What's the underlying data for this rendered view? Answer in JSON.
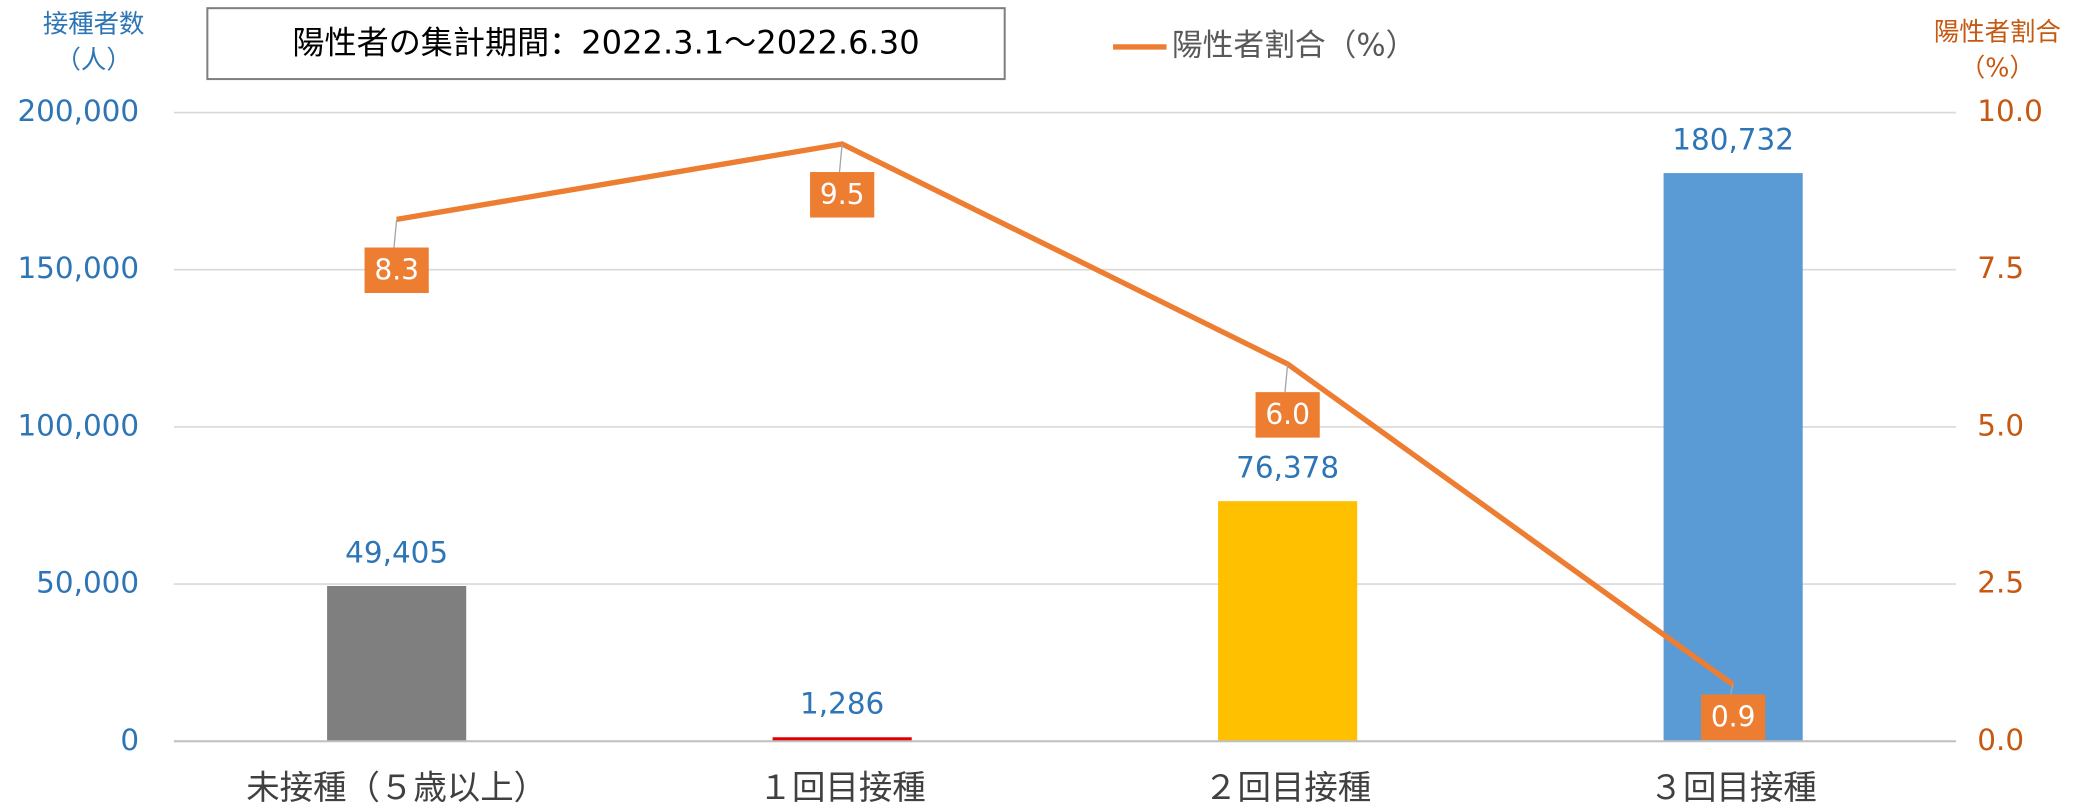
{
  "chart_data": {
    "type": "bar",
    "annotation": "陽性者の集計期間：2022.3.1～2022.6.30",
    "ylabel": [
      "接種者数",
      "（人）"
    ],
    "y2label": [
      "陽性者割合",
      "（%）"
    ],
    "categories": [
      "未接種（５歳以上）",
      "１回目接種",
      "２回目接種",
      "３回目接種"
    ],
    "values": [
      49405,
      1286,
      76378,
      180732
    ],
    "value_labels": [
      "49,405",
      "1,286",
      "76,378",
      "180,732"
    ],
    "colors": [
      "#7f7f7f",
      "#e00000",
      "#ffc000",
      "#5b9bd5"
    ],
    "series": [
      {
        "name": "陽性者割合（%）",
        "color": "#ed7d31",
        "axis": "y2",
        "values": [
          8.3,
          9.5,
          6.0,
          0.9
        ],
        "value_labels": [
          "8.3",
          "9.5",
          "6.0",
          "0.9"
        ]
      }
    ],
    "ylim": [
      0,
      200000
    ],
    "yticks": [
      0,
      {
        "value": 50000,
        "label": "50,000"
      },
      {
        "value": 100000,
        "label": "100,000"
      },
      {
        "value": 150000,
        "label": "150,000"
      },
      {
        "value": 200000,
        "label": "200,000"
      }
    ],
    "y2lim": [
      0,
      10
    ],
    "y2ticks": [
      {
        "value": 0,
        "label": "0.0"
      },
      2.5,
      {
        "value": 5,
        "label": "5.0"
      },
      7.5,
      {
        "value": 10,
        "label": "10.0"
      }
    ],
    "grid": true
  }
}
